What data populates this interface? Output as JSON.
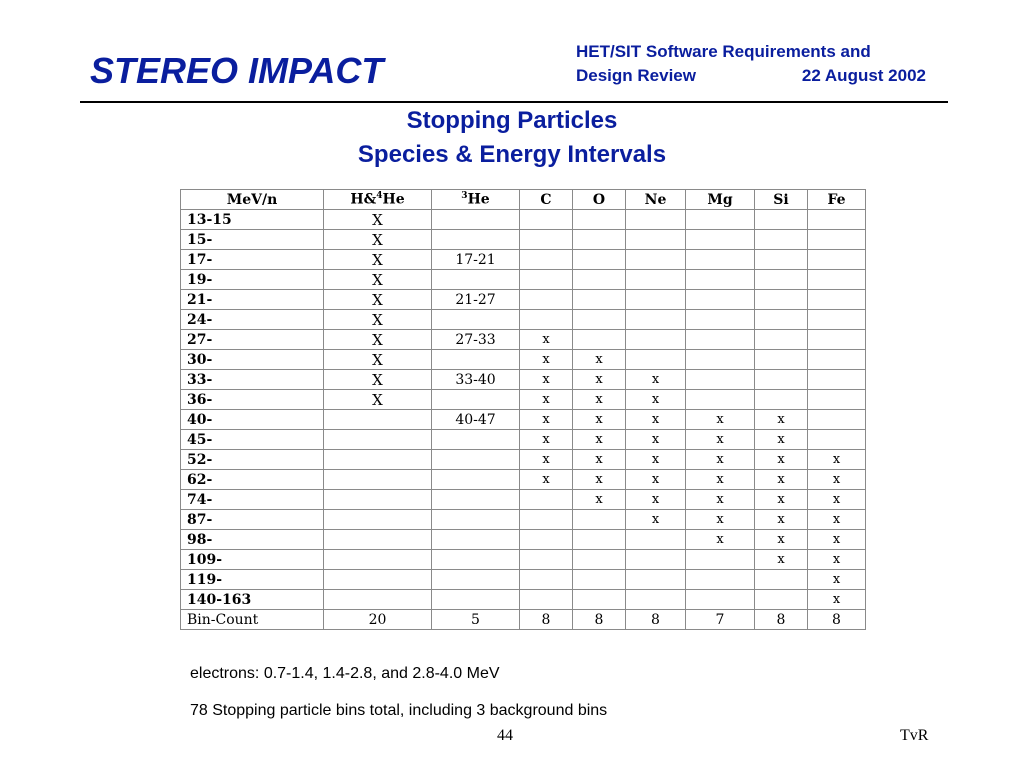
{
  "header": {
    "brand": "STEREO IMPACT",
    "review_line1": "HET/SIT Software Requirements and",
    "review_line2_left": "Design Review",
    "review_line2_right": "22 August 2002"
  },
  "title": {
    "line1": "Stopping Particles",
    "line2": "Species & Energy Intervals"
  },
  "table": {
    "columns": [
      "MeV/n",
      "H&4He",
      "3He",
      "C",
      "O",
      "Ne",
      "Mg",
      "Si",
      "Fe"
    ],
    "rows": [
      [
        "13-15",
        "X",
        "",
        "",
        "",
        "",
        "",
        "",
        ""
      ],
      [
        "15-",
        "X",
        "",
        "",
        "",
        "",
        "",
        "",
        ""
      ],
      [
        "17-",
        "X",
        "17-21",
        "",
        "",
        "",
        "",
        "",
        ""
      ],
      [
        "19-",
        "X",
        "",
        "",
        "",
        "",
        "",
        "",
        ""
      ],
      [
        "21-",
        "X",
        "21-27",
        "",
        "",
        "",
        "",
        "",
        ""
      ],
      [
        "24-",
        "X",
        "",
        "",
        "",
        "",
        "",
        "",
        ""
      ],
      [
        "27-",
        "X",
        "27-33",
        "x",
        "",
        "",
        "",
        "",
        ""
      ],
      [
        "30-",
        "X",
        "",
        "x",
        "x",
        "",
        "",
        "",
        ""
      ],
      [
        "33-",
        "X",
        "33-40",
        "x",
        "x",
        "x",
        "",
        "",
        ""
      ],
      [
        "36-",
        "X",
        "",
        "x",
        "x",
        "x",
        "",
        "",
        ""
      ],
      [
        "40-",
        "",
        "40-47",
        "x",
        "x",
        "x",
        "x",
        "x",
        ""
      ],
      [
        "45-",
        "",
        "",
        "x",
        "x",
        "x",
        "x",
        "x",
        ""
      ],
      [
        "52-",
        "",
        "",
        "x",
        "x",
        "x",
        "x",
        "x",
        "x"
      ],
      [
        "62-",
        "",
        "",
        "x",
        "x",
        "x",
        "x",
        "x",
        "x"
      ],
      [
        "74-",
        "",
        "",
        "",
        "x",
        "x",
        "x",
        "x",
        "x"
      ],
      [
        "87-",
        "",
        "",
        "",
        "",
        "x",
        "x",
        "x",
        "x"
      ],
      [
        "98-",
        "",
        "",
        "",
        "",
        "",
        "x",
        "x",
        "x"
      ],
      [
        "109-",
        "",
        "",
        "",
        "",
        "",
        "",
        "x",
        "x"
      ],
      [
        "119-",
        "",
        "",
        "",
        "",
        "",
        "",
        "",
        "x"
      ],
      [
        "140-163",
        "",
        "",
        "",
        "",
        "",
        "",
        "",
        "x"
      ]
    ],
    "count_label": "Bin-Count",
    "counts": [
      "20",
      "5",
      "8",
      "8",
      "8",
      "7",
      "8",
      "8"
    ]
  },
  "notes": {
    "electrons": "electrons: 0.7-1.4, 1.4-2.8, and 2.8-4.0 MeV",
    "total": "78 Stopping particle bins total, including 3 background bins"
  },
  "footer": {
    "page": "44",
    "author": "TvR"
  },
  "colors": {
    "title_blue": "#0a1e9e",
    "rule": "#000000",
    "grid": "#8a8a8a"
  }
}
